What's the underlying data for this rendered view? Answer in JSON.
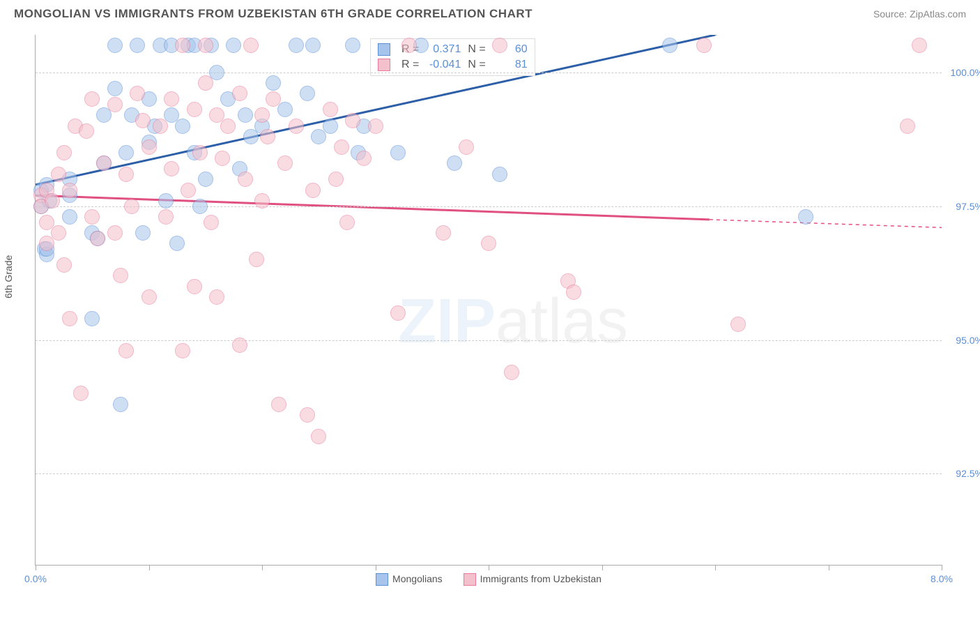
{
  "title": "MONGOLIAN VS IMMIGRANTS FROM UZBEKISTAN 6TH GRADE CORRELATION CHART",
  "source": "Source: ZipAtlas.com",
  "y_axis_label": "6th Grade",
  "watermark_zip": "ZIP",
  "watermark_atlas": "atlas",
  "chart": {
    "type": "scatter",
    "background_color": "#ffffff",
    "grid_color": "#cccccc",
    "axis_color": "#aaaaaa",
    "tick_label_color": "#5b8fd6",
    "x_range": [
      0.0,
      8.0
    ],
    "y_range": [
      90.8,
      100.7
    ],
    "y_ticks": [
      92.5,
      95.0,
      97.5,
      100.0
    ],
    "y_tick_labels": [
      "92.5%",
      "95.0%",
      "97.5%",
      "100.0%"
    ],
    "x_ticks": [
      0,
      1,
      2,
      3,
      4,
      5,
      6,
      7,
      8
    ],
    "x_tick_labels_shown": {
      "0": "0.0%",
      "8": "8.0%"
    },
    "marker_radius": 10,
    "marker_opacity": 0.55,
    "series": [
      {
        "name": "Mongolians",
        "fill": "#a7c5ec",
        "stroke": "#5b8fd6",
        "R_label": "R =",
        "R": "0.371",
        "N_label": "N =",
        "N": "60",
        "trend": {
          "x1": 0.0,
          "y1": 97.9,
          "x2": 6.0,
          "y2": 100.7,
          "extend_x2": 8.0,
          "extend_y2": 101.6,
          "color": "#2d5fa8",
          "width": 3
        },
        "points": [
          [
            0.05,
            97.8
          ],
          [
            0.05,
            97.5
          ],
          [
            0.08,
            96.7
          ],
          [
            0.1,
            97.9
          ],
          [
            0.1,
            96.6
          ],
          [
            0.1,
            96.7
          ],
          [
            0.12,
            97.6
          ],
          [
            0.3,
            98.0
          ],
          [
            0.3,
            97.7
          ],
          [
            0.3,
            97.3
          ],
          [
            0.5,
            95.4
          ],
          [
            0.5,
            97.0
          ],
          [
            0.55,
            96.9
          ],
          [
            0.6,
            99.2
          ],
          [
            0.6,
            98.3
          ],
          [
            0.7,
            100.5
          ],
          [
            0.7,
            99.7
          ],
          [
            0.75,
            93.8
          ],
          [
            0.8,
            98.5
          ],
          [
            0.85,
            99.2
          ],
          [
            0.9,
            100.5
          ],
          [
            0.95,
            97.0
          ],
          [
            1.0,
            99.5
          ],
          [
            1.0,
            98.7
          ],
          [
            1.05,
            99.0
          ],
          [
            1.1,
            100.5
          ],
          [
            1.15,
            97.6
          ],
          [
            1.2,
            100.5
          ],
          [
            1.2,
            99.2
          ],
          [
            1.25,
            96.8
          ],
          [
            1.3,
            99.0
          ],
          [
            1.35,
            100.5
          ],
          [
            1.4,
            98.5
          ],
          [
            1.4,
            100.5
          ],
          [
            1.45,
            97.5
          ],
          [
            1.5,
            98.0
          ],
          [
            1.55,
            100.5
          ],
          [
            1.6,
            100.0
          ],
          [
            1.7,
            99.5
          ],
          [
            1.75,
            100.5
          ],
          [
            1.8,
            98.2
          ],
          [
            1.85,
            99.2
          ],
          [
            1.9,
            98.8
          ],
          [
            2.0,
            99.0
          ],
          [
            2.1,
            99.8
          ],
          [
            2.2,
            99.3
          ],
          [
            2.3,
            100.5
          ],
          [
            2.4,
            99.6
          ],
          [
            2.45,
            100.5
          ],
          [
            2.5,
            98.8
          ],
          [
            2.6,
            99.0
          ],
          [
            2.8,
            100.5
          ],
          [
            2.85,
            98.5
          ],
          [
            2.9,
            99.0
          ],
          [
            3.2,
            98.5
          ],
          [
            3.4,
            100.5
          ],
          [
            3.7,
            98.3
          ],
          [
            4.1,
            98.1
          ],
          [
            5.6,
            100.5
          ],
          [
            6.8,
            97.3
          ]
        ]
      },
      {
        "name": "Immigrants from Uzbekistan",
        "fill": "#f4c0cc",
        "stroke": "#e87a9b",
        "R_label": "R =",
        "R": "-0.041",
        "N_label": "N =",
        "N": "81",
        "trend": {
          "x1": 0.0,
          "y1": 97.7,
          "x2": 5.95,
          "y2": 97.25,
          "extend_x2": 8.0,
          "extend_y2": 97.1,
          "color": "#e05080",
          "width": 3
        },
        "points": [
          [
            0.05,
            97.7
          ],
          [
            0.05,
            97.5
          ],
          [
            0.1,
            97.8
          ],
          [
            0.1,
            96.8
          ],
          [
            0.1,
            97.2
          ],
          [
            0.15,
            97.6
          ],
          [
            0.2,
            98.1
          ],
          [
            0.2,
            97.0
          ],
          [
            0.25,
            96.4
          ],
          [
            0.25,
            98.5
          ],
          [
            0.3,
            97.8
          ],
          [
            0.3,
            95.4
          ],
          [
            0.35,
            99.0
          ],
          [
            0.4,
            94.0
          ],
          [
            0.45,
            98.9
          ],
          [
            0.5,
            99.5
          ],
          [
            0.5,
            97.3
          ],
          [
            0.55,
            96.9
          ],
          [
            0.6,
            98.3
          ],
          [
            0.7,
            99.4
          ],
          [
            0.7,
            97.0
          ],
          [
            0.75,
            96.2
          ],
          [
            0.8,
            98.1
          ],
          [
            0.8,
            94.8
          ],
          [
            0.85,
            97.5
          ],
          [
            0.9,
            99.6
          ],
          [
            0.95,
            99.1
          ],
          [
            1.0,
            98.6
          ],
          [
            1.0,
            95.8
          ],
          [
            1.1,
            99.0
          ],
          [
            1.15,
            97.3
          ],
          [
            1.2,
            99.5
          ],
          [
            1.2,
            98.2
          ],
          [
            1.3,
            94.8
          ],
          [
            1.3,
            100.5
          ],
          [
            1.35,
            97.8
          ],
          [
            1.4,
            99.3
          ],
          [
            1.4,
            96.0
          ],
          [
            1.45,
            98.5
          ],
          [
            1.5,
            99.8
          ],
          [
            1.5,
            100.5
          ],
          [
            1.55,
            97.2
          ],
          [
            1.6,
            99.2
          ],
          [
            1.6,
            95.8
          ],
          [
            1.65,
            98.4
          ],
          [
            1.7,
            99.0
          ],
          [
            1.8,
            94.9
          ],
          [
            1.8,
            99.6
          ],
          [
            1.85,
            98.0
          ],
          [
            1.9,
            100.5
          ],
          [
            1.95,
            96.5
          ],
          [
            2.0,
            99.2
          ],
          [
            2.0,
            97.6
          ],
          [
            2.05,
            98.8
          ],
          [
            2.1,
            99.5
          ],
          [
            2.15,
            93.8
          ],
          [
            2.2,
            98.3
          ],
          [
            2.3,
            99.0
          ],
          [
            2.4,
            93.6
          ],
          [
            2.45,
            97.8
          ],
          [
            2.5,
            93.2
          ],
          [
            2.6,
            99.3
          ],
          [
            2.65,
            98.0
          ],
          [
            2.7,
            98.6
          ],
          [
            2.75,
            97.2
          ],
          [
            2.8,
            99.1
          ],
          [
            2.9,
            98.4
          ],
          [
            3.0,
            99.0
          ],
          [
            3.2,
            95.5
          ],
          [
            3.3,
            100.5
          ],
          [
            3.6,
            97.0
          ],
          [
            3.8,
            98.6
          ],
          [
            4.0,
            96.8
          ],
          [
            4.1,
            100.5
          ],
          [
            4.2,
            94.4
          ],
          [
            4.7,
            96.1
          ],
          [
            4.75,
            95.9
          ],
          [
            5.9,
            100.5
          ],
          [
            6.2,
            95.3
          ],
          [
            7.7,
            99.0
          ],
          [
            7.8,
            100.5
          ]
        ]
      }
    ]
  }
}
